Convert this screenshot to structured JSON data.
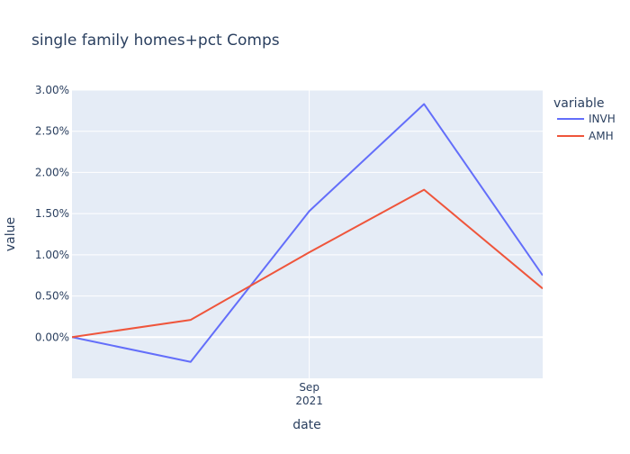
{
  "chart_data": {
    "type": "line",
    "title": "single family homes+pct Comps",
    "xlabel": "date",
    "ylabel": "value",
    "x_ticks": [
      {
        "value": "2021-09-01",
        "label_line1": "Sep",
        "label_line2": "2021"
      }
    ],
    "x": [
      "2021-07-01",
      "2021-08-01",
      "2021-09-01",
      "2021-10-01",
      "2021-11-01"
    ],
    "xlim": [
      "2021-07-01",
      "2021-11-01"
    ],
    "ylim": [
      -0.005,
      0.03
    ],
    "y_ticks": [
      {
        "value": 0.0,
        "label": "0.00%"
      },
      {
        "value": 0.005,
        "label": "0.50%"
      },
      {
        "value": 0.01,
        "label": "1.00%"
      },
      {
        "value": 0.015,
        "label": "1.50%"
      },
      {
        "value": 0.02,
        "label": "2.00%"
      },
      {
        "value": 0.025,
        "label": "2.50%"
      },
      {
        "value": 0.03,
        "label": "3.00%"
      }
    ],
    "legend_title": "variable",
    "legend_position": "top-right",
    "grid": true,
    "plot_background": "#e5ecf6",
    "grid_color": "#ffffff",
    "series": [
      {
        "name": "INVH",
        "color": "#636efa",
        "values": [
          0.0,
          -0.003,
          0.0153,
          0.0283,
          0.0075
        ]
      },
      {
        "name": "AMH",
        "color": "#ef553b",
        "values": [
          0.0,
          0.0021,
          0.0103,
          0.0179,
          0.0059
        ]
      }
    ]
  }
}
